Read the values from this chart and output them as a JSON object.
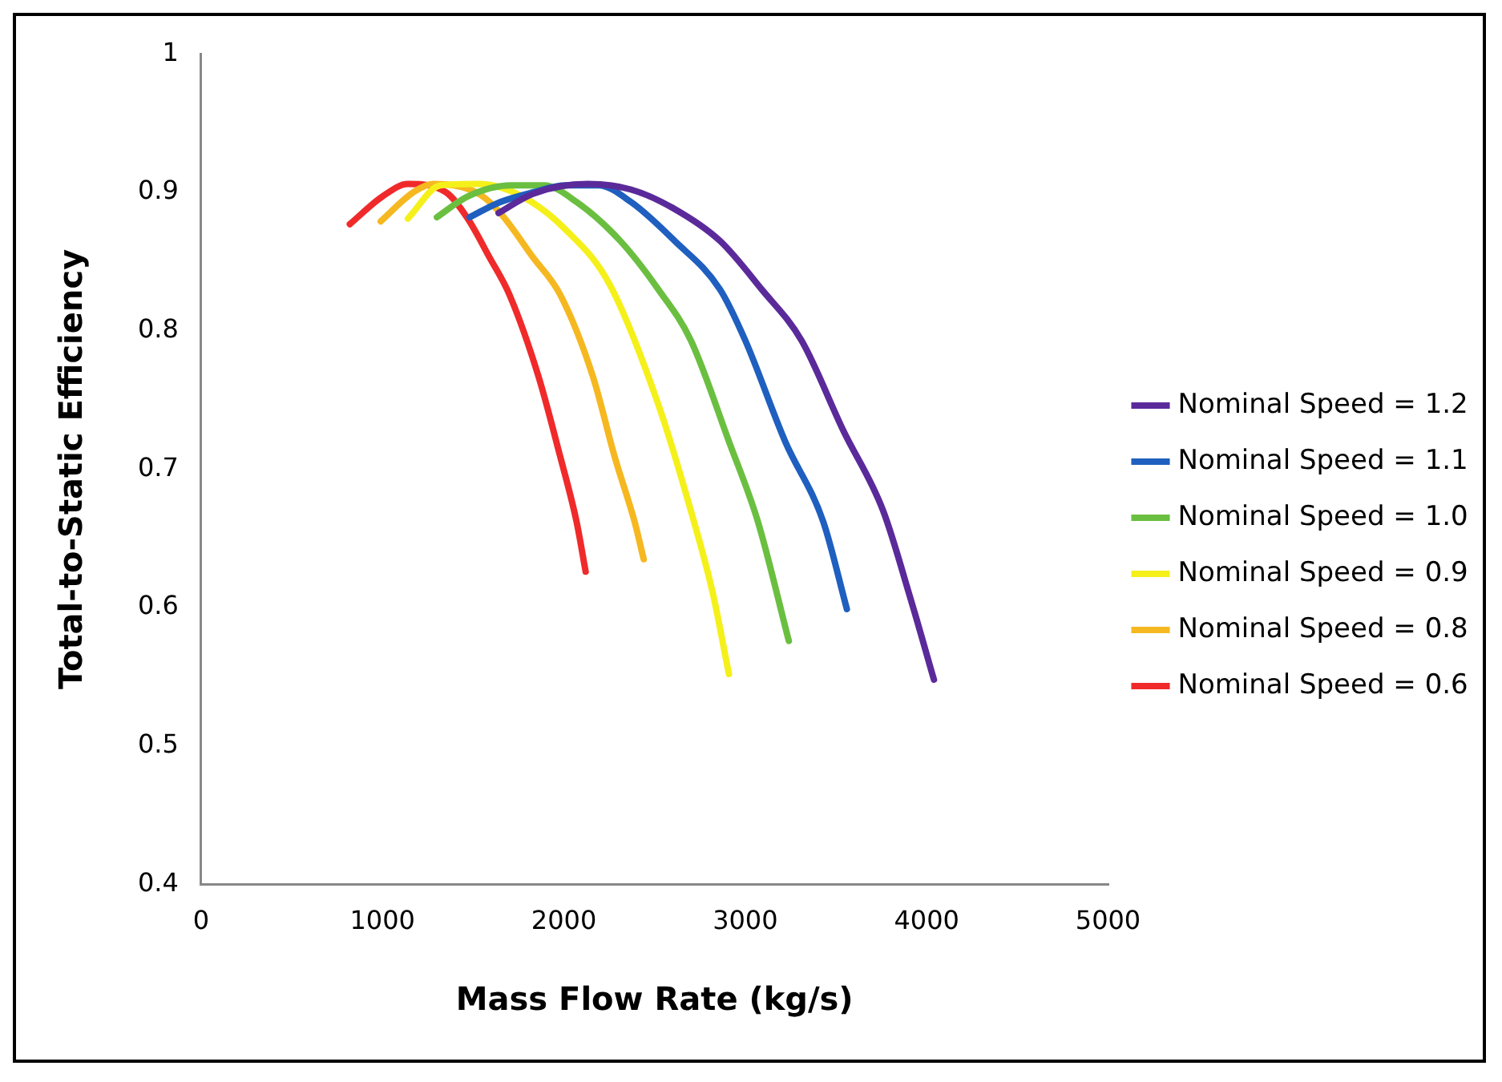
{
  "chart_data": {
    "type": "line",
    "xlabel": "Mass Flow Rate (kg/s)",
    "ylabel": "Total-to-Static Efficiency",
    "xlim": [
      0,
      5000
    ],
    "xticks": [
      0,
      1000,
      2000,
      3000,
      4000,
      5000
    ],
    "ylim": [
      0.4,
      1
    ],
    "yticks": [
      0.4,
      0.5,
      0.6,
      0.7,
      0.8,
      0.9,
      1
    ],
    "grid": false,
    "legend": "right",
    "marker": "none",
    "line_style": "solid",
    "series": [
      {
        "name": "Nominal Speed = 1.2",
        "color": "#5b2a9a",
        "x": [
          1640,
          1830,
          2130,
          2370,
          2610,
          2860,
          3090,
          3310,
          3540,
          3760,
          3910,
          4040
        ],
        "values": [
          0.885,
          0.899,
          0.906,
          0.902,
          0.888,
          0.865,
          0.83,
          0.793,
          0.728,
          0.67,
          0.607,
          0.548
        ]
      },
      {
        "name": "Nominal Speed = 1.1",
        "color": "#1f5fbf",
        "x": [
          1480,
          1650,
          1830,
          2010,
          2190,
          2370,
          2610,
          2860,
          3000,
          3220,
          3430,
          3560
        ],
        "values": [
          0.882,
          0.893,
          0.9,
          0.905,
          0.905,
          0.893,
          0.865,
          0.83,
          0.793,
          0.72,
          0.662,
          0.599
        ]
      },
      {
        "name": "Nominal Speed = 1.0",
        "color": "#6abf40",
        "x": [
          1300,
          1470,
          1710,
          1890,
          2070,
          2310,
          2520,
          2700,
          2910,
          3070,
          3240
        ],
        "values": [
          0.882,
          0.897,
          0.905,
          0.905,
          0.893,
          0.865,
          0.83,
          0.793,
          0.72,
          0.662,
          0.576
        ]
      },
      {
        "name": "Nominal Speed = 0.9",
        "color": "#f5f01a",
        "x": [
          1140,
          1320,
          1530,
          1770,
          2010,
          2250,
          2520,
          2700,
          2820,
          2910
        ],
        "values": [
          0.881,
          0.905,
          0.906,
          0.897,
          0.873,
          0.834,
          0.747,
          0.67,
          0.611,
          0.552
        ]
      },
      {
        "name": "Nominal Speed = 0.8",
        "color": "#f5b820",
        "x": [
          990,
          1170,
          1280,
          1530,
          1650,
          1830,
          1980,
          2160,
          2280,
          2390,
          2440
        ],
        "values": [
          0.879,
          0.9,
          0.906,
          0.899,
          0.885,
          0.853,
          0.826,
          0.767,
          0.709,
          0.662,
          0.635
        ]
      },
      {
        "name": "Nominal Speed = 0.6",
        "color": "#f02a2a",
        "x": [
          820,
          1000,
          1140,
          1350,
          1470,
          1590,
          1700,
          1860,
          1980,
          2070,
          2120
        ],
        "values": [
          0.877,
          0.897,
          0.906,
          0.9,
          0.881,
          0.853,
          0.826,
          0.767,
          0.709,
          0.662,
          0.626
        ]
      }
    ]
  }
}
